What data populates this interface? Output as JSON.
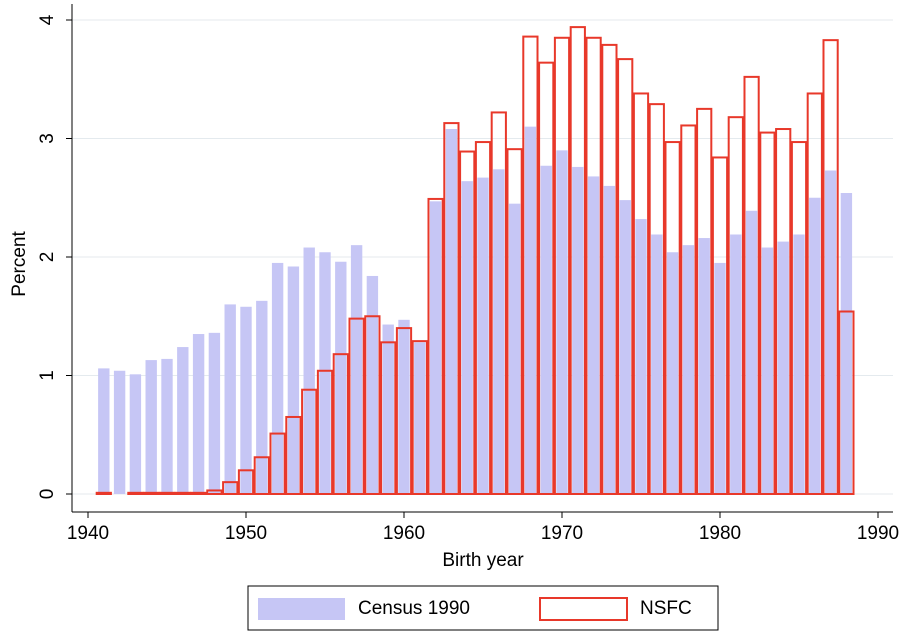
{
  "chart_data": {
    "type": "bar",
    "x_label": "Birth year",
    "y_label": "Percent",
    "x": [
      1941,
      1942,
      1943,
      1944,
      1945,
      1946,
      1947,
      1948,
      1949,
      1950,
      1951,
      1952,
      1953,
      1954,
      1955,
      1956,
      1957,
      1958,
      1959,
      1960,
      1961,
      1962,
      1963,
      1964,
      1965,
      1966,
      1967,
      1968,
      1969,
      1970,
      1971,
      1972,
      1973,
      1974,
      1975,
      1976,
      1977,
      1978,
      1979,
      1980,
      1981,
      1982,
      1983,
      1984,
      1985,
      1986,
      1987,
      1988
    ],
    "series": [
      {
        "name": "Census 1990",
        "color": "#c6c6f5",
        "style": "filled",
        "values": [
          1.06,
          1.04,
          1.01,
          1.13,
          1.14,
          1.24,
          1.35,
          1.36,
          1.6,
          1.58,
          1.63,
          1.95,
          1.92,
          2.08,
          2.04,
          1.96,
          2.1,
          1.84,
          1.43,
          1.47,
          1.28,
          2.47,
          3.08,
          2.64,
          2.67,
          2.74,
          2.45,
          3.1,
          2.77,
          2.9,
          2.76,
          2.68,
          2.6,
          2.48,
          2.32,
          2.19,
          2.04,
          2.1,
          2.16,
          1.95,
          2.19,
          2.39,
          2.08,
          2.13,
          2.19,
          2.5,
          2.73,
          2.54
        ]
      },
      {
        "name": "NSFC",
        "color": "#e8382a",
        "style": "outline",
        "values": [
          0.01,
          null,
          0.01,
          0.01,
          0.01,
          0.01,
          0.01,
          0.03,
          0.1,
          0.2,
          0.31,
          0.51,
          0.65,
          0.88,
          1.04,
          1.18,
          1.48,
          1.5,
          1.28,
          1.4,
          1.29,
          2.49,
          3.13,
          2.89,
          2.97,
          3.22,
          2.91,
          3.86,
          3.64,
          3.85,
          3.94,
          3.85,
          3.79,
          3.67,
          3.38,
          3.29,
          2.97,
          3.11,
          3.25,
          2.84,
          3.18,
          3.52,
          3.05,
          3.08,
          2.97,
          3.38,
          3.83,
          1.54
        ]
      }
    ],
    "xlim": [
      1940,
      1990
    ],
    "xticks": [
      1940,
      1950,
      1960,
      1970,
      1980,
      1990
    ],
    "ylim": [
      0,
      4
    ],
    "yticks": [
      0,
      1,
      2,
      3,
      4
    ],
    "grid": true,
    "legend": "bottom"
  }
}
